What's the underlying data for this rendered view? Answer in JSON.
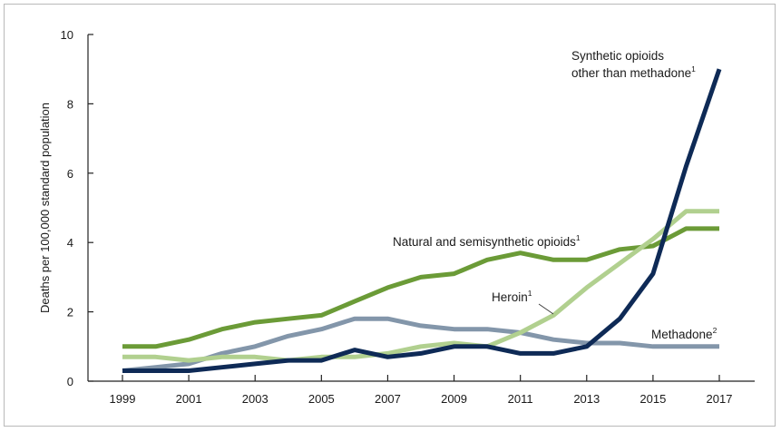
{
  "chart_data": {
    "type": "line",
    "title": "",
    "xlabel": "",
    "ylabel": "Deaths per 100,000 standard population",
    "xlim": [
      1999,
      2017
    ],
    "ylim": [
      0,
      10
    ],
    "x_ticks": [
      1999,
      2001,
      2003,
      2005,
      2007,
      2009,
      2011,
      2013,
      2015,
      2017
    ],
    "y_ticks": [
      0,
      2,
      4,
      6,
      8,
      10
    ],
    "grid": false,
    "x": [
      1999,
      2000,
      2001,
      2002,
      2003,
      2004,
      2005,
      2006,
      2007,
      2008,
      2009,
      2010,
      2011,
      2012,
      2013,
      2014,
      2015,
      2016,
      2017
    ],
    "series": [
      {
        "name": "Natural and semisynthetic opioids",
        "label_line1": "Natural and semisynthetic opioids",
        "label_line2": "",
        "superscript": "1",
        "color": "#6b9b37",
        "values": [
          1.0,
          1.0,
          1.2,
          1.5,
          1.7,
          1.8,
          1.9,
          2.3,
          2.7,
          3.0,
          3.1,
          3.5,
          3.7,
          3.5,
          3.5,
          3.8,
          3.9,
          4.4,
          4.4
        ]
      },
      {
        "name": "Methadone",
        "label_line1": "Methadone",
        "label_line2": "",
        "superscript": "2",
        "color": "#8396aa",
        "values": [
          0.3,
          0.4,
          0.5,
          0.8,
          1.0,
          1.3,
          1.5,
          1.8,
          1.8,
          1.6,
          1.5,
          1.5,
          1.4,
          1.2,
          1.1,
          1.1,
          1.0,
          1.0,
          1.0
        ]
      },
      {
        "name": "Heroin",
        "label_line1": "Heroin",
        "label_line2": "",
        "superscript": "1",
        "color": "#b1d08f",
        "values": [
          0.7,
          0.7,
          0.6,
          0.7,
          0.7,
          0.6,
          0.7,
          0.7,
          0.8,
          1.0,
          1.1,
          1.0,
          1.4,
          1.9,
          2.7,
          3.4,
          4.1,
          4.9,
          4.9
        ]
      },
      {
        "name": "Synthetic opioids other than methadone",
        "label_line1": "Synthetic opioids",
        "label_line2": "other than methadone",
        "superscript": "1",
        "color": "#0e2a56",
        "values": [
          0.3,
          0.3,
          0.3,
          0.4,
          0.5,
          0.6,
          0.6,
          0.9,
          0.7,
          0.8,
          1.0,
          1.0,
          0.8,
          0.8,
          1.0,
          1.8,
          3.1,
          6.2,
          9.0
        ]
      }
    ]
  }
}
